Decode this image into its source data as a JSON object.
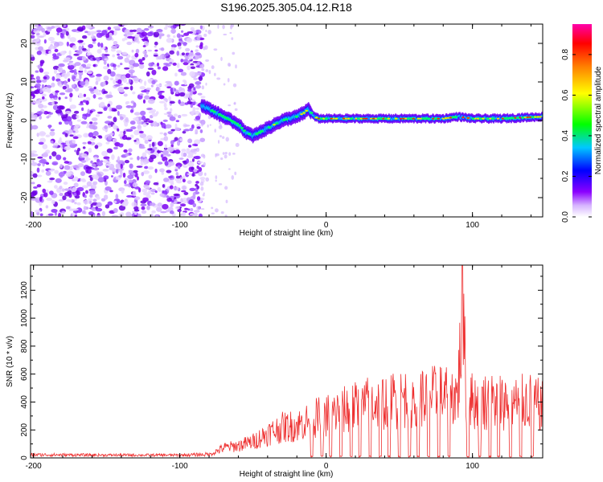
{
  "figure_title": "S196.2025.305.04.12.R18",
  "chart_data": [
    {
      "type": "heatmap",
      "title": "S196.2025.305.04.12.R18",
      "xlabel": "Height of straight line (km)",
      "ylabel": "Frequency (Hz)",
      "xlim": [
        -202,
        148
      ],
      "ylim": [
        -25,
        25
      ],
      "x_ticks": [
        -200,
        -100,
        0,
        100
      ],
      "x_tick_labels": [
        "-200",
        "-100",
        "0",
        "100"
      ],
      "y_ticks": [
        -20,
        -10,
        0,
        10,
        20
      ],
      "y_tick_labels": [
        "-20",
        "-10",
        "0",
        "10",
        "20"
      ],
      "colorbar": {
        "label": "Normalized spectral amplitude",
        "range": [
          0,
          0.95
        ],
        "ticks": [
          0,
          0.2,
          0.4,
          0.6,
          0.8
        ],
        "tick_labels": [
          "0.0",
          "0.2",
          "0.4",
          "0.6",
          "0.8"
        ],
        "colors": [
          "#ffffff",
          "#8b00ff",
          "#0000ff",
          "#00c8ff",
          "#00ff00",
          "#ffff00",
          "#ff7f00",
          "#ff0000",
          "#ff00aa"
        ]
      },
      "signal_ridge": {
        "x": [
          -85,
          -80,
          -75,
          -70,
          -65,
          -60,
          -55,
          -50,
          -45,
          -40,
          -35,
          -30,
          -25,
          -20,
          -15,
          -12,
          -8,
          -5,
          0,
          20,
          40,
          60,
          80,
          90,
          100,
          120,
          148
        ],
        "frequency_hz": [
          4,
          3,
          2,
          1,
          0,
          -1,
          -3,
          -4,
          -3,
          -2,
          -1,
          0,
          0.5,
          1,
          2,
          3,
          1,
          0.5,
          0.5,
          0.5,
          0.5,
          0.5,
          0.5,
          1,
          0.5,
          0.5,
          1
        ]
      }
    },
    {
      "type": "line",
      "xlabel": "Height of straight line (km)",
      "ylabel": "SNR (10 * v/v)",
      "xlim": [
        -202,
        148
      ],
      "ylim": [
        0,
        1380
      ],
      "x_ticks": [
        -200,
        -100,
        0,
        100
      ],
      "x_tick_labels": [
        "-200",
        "-100",
        "0",
        "100"
      ],
      "y_ticks": [
        0,
        200,
        400,
        600,
        800,
        1000,
        1200
      ],
      "y_tick_labels": [
        "0",
        "200",
        "400",
        "600",
        "800",
        "1000",
        "1200"
      ],
      "color": "#ee3030",
      "envelope": {
        "x": [
          -202,
          -150,
          -100,
          -80,
          -70,
          -60,
          -50,
          -40,
          -30,
          -20,
          -10,
          0,
          10,
          20,
          30,
          40,
          50,
          60,
          70,
          80,
          90,
          93,
          96,
          100,
          110,
          120,
          130,
          140,
          148
        ],
        "snr": [
          25,
          20,
          20,
          30,
          100,
          120,
          160,
          240,
          300,
          320,
          380,
          420,
          460,
          500,
          540,
          560,
          580,
          600,
          600,
          620,
          620,
          1380,
          640,
          560,
          560,
          560,
          540,
          560,
          500
        ]
      },
      "peak": {
        "x": 93,
        "snr": 1380
      },
      "dropouts_x": [
        -10,
        -3,
        3,
        10,
        17,
        23,
        30,
        37,
        43,
        50,
        57,
        63,
        70,
        77,
        84,
        97,
        105,
        112,
        118,
        126,
        133,
        141
      ]
    }
  ]
}
